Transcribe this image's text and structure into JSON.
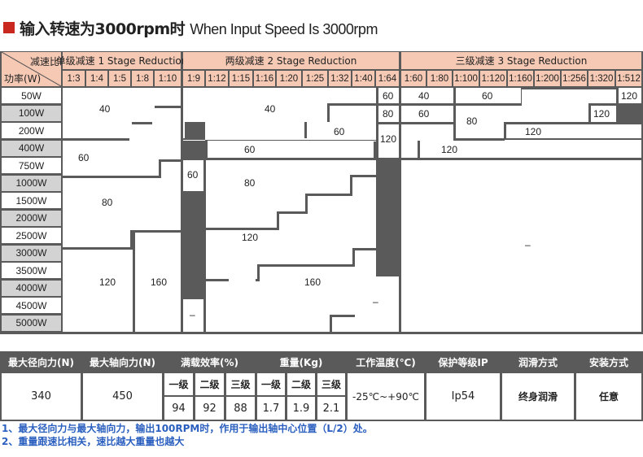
{
  "title": {
    "cn": "输入转速为3000rpm时",
    "en": "When Input Speed Is 3000rpm"
  },
  "header": {
    "corner_top": "减速比",
    "corner_bottom": "功率(W)",
    "stage1": "单级减速 1 Stage Reduction",
    "stage2": "两级减速 2 Stage Reduction",
    "stage3": "三级减速 3 Stage Reduction"
  },
  "ratios": [
    "1:3",
    "1:4",
    "1:5",
    "1:8",
    "1:10",
    "1:9",
    "1:12",
    "1:15",
    "1:16",
    "1:20",
    "1:25",
    "1:32",
    "1:40",
    "1:64",
    "1:60",
    "1:80",
    "1:100",
    "1:120",
    "1:160",
    "1:200",
    "1:256",
    "1:320",
    "1:512"
  ],
  "powers": [
    "50W",
    "100W",
    "200W",
    "400W",
    "750W",
    "1000W",
    "1500W",
    "2000W",
    "2500W",
    "3000W",
    "3500W",
    "4000W",
    "4500W",
    "5000W"
  ],
  "torque_values": {
    "s1_40": "40",
    "s1_60": "60",
    "s1_80": "80",
    "s1_120": "120",
    "s1_160": "160",
    "s1_dash": "–",
    "s2_40": "40",
    "s2_60a": "60",
    "s2_60b": "60",
    "s2_60c": "60",
    "s2_80": "80",
    "s2_120": "120",
    "s2_160": "160",
    "s2_dash": "–",
    "c64_60": "60",
    "c64_80": "80",
    "c64_120": "120",
    "s3_40": "40",
    "s3_60a": "60",
    "s3_60b": "60",
    "s3_80": "80",
    "s3_120a": "120",
    "s3_120b": "120",
    "s3_120c": "120",
    "s3_120d": "120",
    "s3_dash": "–"
  },
  "specs": {
    "headers": {
      "radial": "最大径向力(N)",
      "axial": "最大轴向力(N)",
      "efficiency": "满载效率(%)",
      "weight": "重量(Kg)",
      "temp": "工作温度(℃)",
      "ip": "保护等级IP",
      "lube": "润滑方式",
      "mount": "安装方式"
    },
    "stage_labels": [
      "一级",
      "二级",
      "三级",
      "一级",
      "二级",
      "三级"
    ],
    "radial": "340",
    "axial": "450",
    "efficiency": [
      "94",
      "92",
      "88"
    ],
    "weight": [
      "1.7",
      "1.9",
      "2.1"
    ],
    "temp": "-25℃~+90℃",
    "ip": "Ip54",
    "lube": "终身润滑",
    "mount": "任意"
  },
  "notes": [
    "1、最大径向力与最大轴向力，输出100RPM时，作用于输出轴中心位置（L/2）处。",
    "2、重量跟速比相关，速比越大重量也越大"
  ],
  "colors": {
    "accent": "#c8281e",
    "header_bg": "#f6c9b4",
    "table_bg": "#5a5a5a",
    "note": "#2a5fbf"
  }
}
